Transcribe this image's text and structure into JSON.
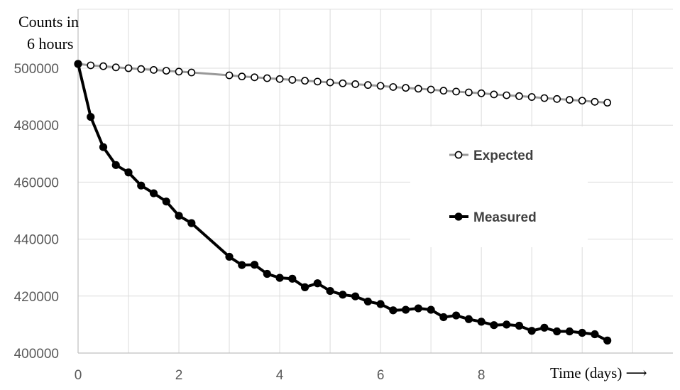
{
  "chart_data": {
    "type": "line",
    "ylabel_line1": "Counts in",
    "ylabel_line2": "6 hours",
    "xlabel": "Time (days) ⟶",
    "xlim": [
      0,
      11.8
    ],
    "ylim": [
      400000,
      500000
    ],
    "xticks": [
      0,
      2,
      4,
      6,
      8
    ],
    "xtick_labels": [
      "0",
      "2",
      "4",
      "6",
      "8"
    ],
    "yticks": [
      400000,
      420000,
      440000,
      460000,
      480000,
      500000
    ],
    "ytick_labels": [
      "400000",
      "420000",
      "440000",
      "460000",
      "480000",
      "500000"
    ],
    "grid": true,
    "legend_position": "center-right",
    "series": [
      {
        "name": "Expected",
        "color": "#999999",
        "marker": "open-circle",
        "points": [
          [
            0,
            501500
          ],
          [
            0.25,
            501000
          ],
          [
            0.5,
            500700
          ],
          [
            0.75,
            500300
          ],
          [
            1.0,
            500000
          ],
          [
            1.25,
            499700
          ],
          [
            1.5,
            499400
          ],
          [
            1.75,
            499100
          ],
          [
            2.0,
            498800
          ],
          [
            2.25,
            498500
          ],
          [
            3.0,
            497500
          ],
          [
            3.25,
            497100
          ],
          [
            3.5,
            496800
          ],
          [
            3.75,
            496500
          ],
          [
            4.0,
            496200
          ],
          [
            4.25,
            495900
          ],
          [
            4.5,
            495600
          ],
          [
            4.75,
            495300
          ],
          [
            5.0,
            495000
          ],
          [
            5.25,
            494700
          ],
          [
            5.5,
            494400
          ],
          [
            5.75,
            494100
          ],
          [
            6.0,
            493800
          ],
          [
            6.25,
            493400
          ],
          [
            6.5,
            493100
          ],
          [
            6.75,
            492800
          ],
          [
            7.0,
            492500
          ],
          [
            7.25,
            492100
          ],
          [
            7.5,
            491800
          ],
          [
            7.75,
            491500
          ],
          [
            8.0,
            491200
          ],
          [
            8.25,
            490800
          ],
          [
            8.5,
            490500
          ],
          [
            8.75,
            490200
          ],
          [
            9.0,
            489900
          ],
          [
            9.25,
            489500
          ],
          [
            9.5,
            489200
          ],
          [
            9.75,
            488900
          ],
          [
            10.0,
            488600
          ],
          [
            10.25,
            488200
          ],
          [
            10.5,
            487900
          ]
        ]
      },
      {
        "name": "Measured",
        "color": "#000000",
        "marker": "filled-circle",
        "points": [
          [
            0,
            501500
          ],
          [
            0.25,
            482900
          ],
          [
            0.5,
            472300
          ],
          [
            0.75,
            466000
          ],
          [
            1.0,
            463400
          ],
          [
            1.25,
            458800
          ],
          [
            1.5,
            456100
          ],
          [
            1.75,
            453200
          ],
          [
            2.0,
            448200
          ],
          [
            2.25,
            445600
          ],
          [
            3.0,
            433800
          ],
          [
            3.25,
            430900
          ],
          [
            3.5,
            431000
          ],
          [
            3.75,
            427800
          ],
          [
            4.0,
            426400
          ],
          [
            4.25,
            426100
          ],
          [
            4.5,
            423100
          ],
          [
            4.75,
            424500
          ],
          [
            5.0,
            421800
          ],
          [
            5.25,
            420500
          ],
          [
            5.5,
            419900
          ],
          [
            5.75,
            418100
          ],
          [
            6.0,
            417200
          ],
          [
            6.25,
            415000
          ],
          [
            6.5,
            415200
          ],
          [
            6.75,
            415700
          ],
          [
            7.0,
            415200
          ],
          [
            7.25,
            412600
          ],
          [
            7.5,
            413200
          ],
          [
            7.75,
            411900
          ],
          [
            8.0,
            411000
          ],
          [
            8.25,
            409800
          ],
          [
            8.5,
            410000
          ],
          [
            8.75,
            409600
          ],
          [
            9.0,
            407800
          ],
          [
            9.25,
            408900
          ],
          [
            9.5,
            407600
          ],
          [
            9.75,
            407600
          ],
          [
            10.0,
            407100
          ],
          [
            10.25,
            406600
          ],
          [
            10.5,
            404400
          ]
        ]
      }
    ]
  }
}
